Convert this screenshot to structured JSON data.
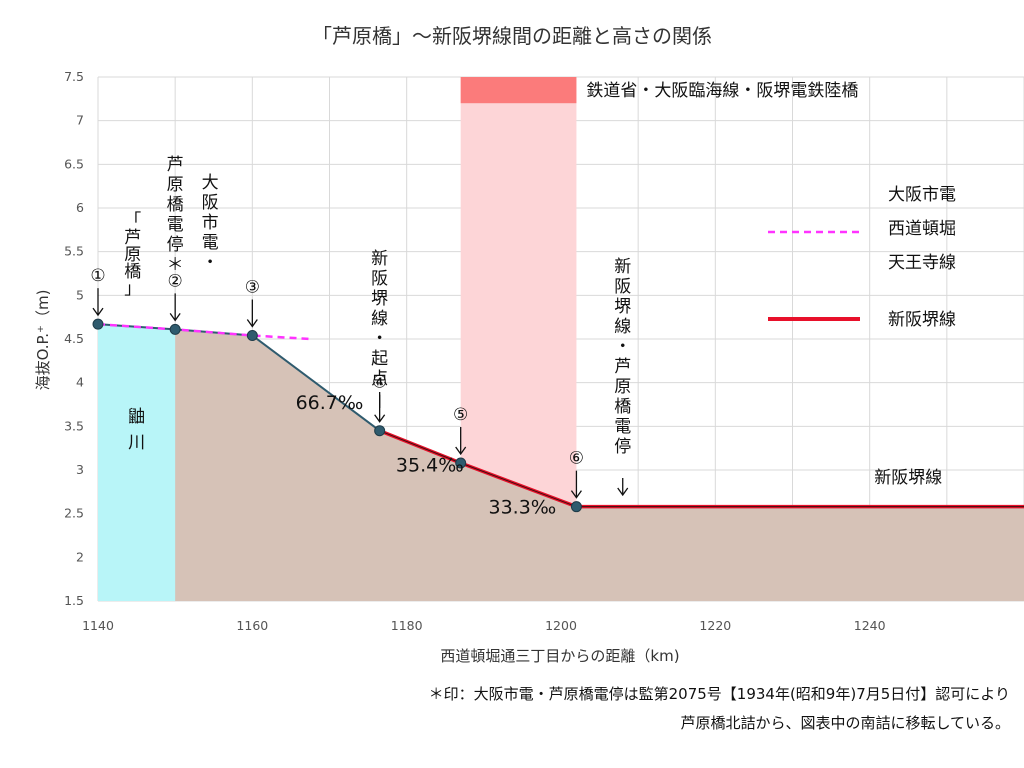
{
  "chart_data": {
    "type": "area",
    "title": "「芦原橋」〜新阪堺線間の距離と高さの関係",
    "xlabel": "西道頓堀通三丁目からの距離（km)",
    "ylabel": "海抜O.P.⁺（m)",
    "xlim": [
      1140,
      1260
    ],
    "ylim": [
      1.5,
      7.5
    ],
    "xticks": [
      "1140",
      "1160",
      "1180",
      "1200",
      "1220",
      "1240"
    ],
    "yticks": [
      "1.5",
      "2",
      "2.5",
      "3",
      "3.5",
      "4",
      "4.5",
      "5",
      "5.5",
      "6",
      "6.5",
      "7",
      "7.5"
    ],
    "grid": true,
    "ground_profile": [
      {
        "x": 1140,
        "y": 4.67
      },
      {
        "x": 1150,
        "y": 4.61
      },
      {
        "x": 1160,
        "y": 4.54
      },
      {
        "x": 1176.5,
        "y": 3.45
      },
      {
        "x": 1187,
        "y": 3.08
      },
      {
        "x": 1202,
        "y": 2.58
      },
      {
        "x": 1260,
        "y": 2.58
      }
    ],
    "river_span": {
      "label": "鼬\n川",
      "x": [
        1140,
        1150
      ]
    },
    "bridge_span": {
      "label": "鉄道省・大阪臨海線・阪堺電鉄陸橋",
      "x": [
        1187,
        1202
      ],
      "y_band": [
        7.2,
        7.5
      ]
    },
    "series": [
      {
        "name": "大阪市電\n西道頓堀\n天王寺線",
        "style": "dashed",
        "color": "#ff33ff",
        "points": [
          {
            "x": 1140,
            "y": 4.67
          },
          {
            "x": 1150,
            "y": 4.61
          },
          {
            "x": 1160,
            "y": 4.54
          },
          {
            "x": 1167.5,
            "y": 4.5
          }
        ]
      },
      {
        "name": "新阪堺線",
        "style": "solid",
        "color": "#e8102a",
        "points": [
          {
            "x": 1176.5,
            "y": 3.45
          },
          {
            "x": 1187,
            "y": 3.08
          },
          {
            "x": 1202,
            "y": 2.58
          },
          {
            "x": 1260,
            "y": 2.58
          }
        ]
      }
    ],
    "markers": [
      {
        "label": "①",
        "x": 1140,
        "y": 4.67,
        "text": ""
      },
      {
        "label": "②",
        "x": 1150,
        "y": 4.61,
        "text": "大阪市電・\n芦原橋電停＊"
      },
      {
        "label": "③",
        "x": 1160,
        "y": 4.54,
        "text": ""
      },
      {
        "label": "④",
        "x": 1176.5,
        "y": 3.45,
        "text": "新阪堺線・起点"
      },
      {
        "label": "⑤",
        "x": 1187,
        "y": 3.08,
        "text": ""
      },
      {
        "label": "⑥",
        "x": 1202,
        "y": 2.58,
        "text": ""
      }
    ],
    "annotations": {
      "ashiharabashi": "「芦原橋」",
      "new_hankai_station": "新阪堺線・芦原橋電停",
      "line_label": "新阪堺線"
    },
    "gradients": [
      {
        "text": "66.7‰",
        "x": 1170,
        "y": 3.7
      },
      {
        "text": "35.4‰",
        "x": 1183,
        "y": 2.98
      },
      {
        "text": "33.3‰",
        "x": 1195,
        "y": 2.5
      }
    ]
  },
  "footnote": {
    "line1": "＊印：大阪市電・芦原橋電停は監第2075号【1934年(昭和9年)7月5日付】認可により",
    "line2": "芦原橋北詰から、図表中の南詰に移転している。"
  },
  "colors": {
    "ground": "#d6c2b7",
    "river": "#b8f5f8",
    "bridge_pier": "#fdd5d7",
    "bridge_deck": "#fb7b7b",
    "grid": "#d9d9d9"
  }
}
